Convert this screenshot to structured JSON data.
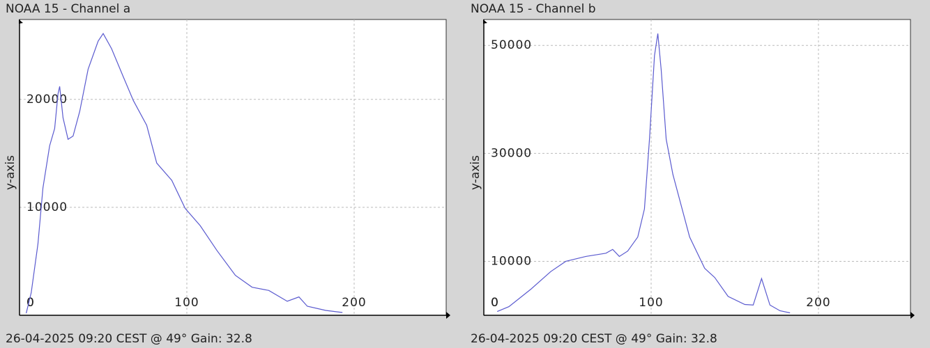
{
  "chart_data": [
    {
      "type": "line",
      "title": "NOAA 15 - Channel a",
      "y_label": "y-axis",
      "caption": "26-04-2025 09:20 CEST @ 49° Gain: 32.8",
      "x": [
        4,
        7,
        11,
        14,
        18,
        21,
        23,
        24,
        26,
        29,
        32,
        36,
        41,
        47,
        50,
        55,
        62,
        68,
        76,
        82,
        91,
        99,
        108,
        118,
        129,
        139,
        149,
        160,
        167,
        172,
        183,
        193
      ],
      "series": [
        {
          "name": "Channel a",
          "color": "#5a5acf",
          "values": [
            190,
            2100,
            6600,
            11800,
            15700,
            17300,
            20500,
            21200,
            18300,
            16300,
            16600,
            18900,
            22800,
            25400,
            26100,
            24700,
            22100,
            19900,
            17600,
            14100,
            12500,
            9900,
            8300,
            6000,
            3700,
            2600,
            2300,
            1300,
            1700,
            840,
            450,
            260
          ]
        }
      ],
      "xlim": [
        0,
        255
      ],
      "xticks": [
        0,
        100,
        200
      ],
      "ylim": [
        0,
        27400
      ],
      "yticks": [
        0,
        10000,
        20000
      ],
      "grid": true
    },
    {
      "type": "line",
      "title": "NOAA 15 - Channel b",
      "y_label": "y-axis",
      "caption": "26-04-2025 09:20 CEST @ 49° Gain: 32.8",
      "x": [
        8,
        15,
        28,
        40,
        49,
        61,
        73,
        77,
        81,
        86,
        92,
        96,
        99,
        102,
        104,
        106,
        109,
        113,
        123,
        132,
        138,
        146,
        156,
        161,
        166,
        171,
        177,
        183
      ],
      "series": [
        {
          "name": "Channel b",
          "color": "#5a5acf",
          "values": [
            700,
            1600,
            4800,
            8100,
            10000,
            10900,
            11500,
            12200,
            10900,
            11900,
            14500,
            19700,
            32600,
            48100,
            52200,
            45500,
            32600,
            26100,
            14500,
            8700,
            7000,
            3500,
            2000,
            1900,
            6800,
            1900,
            840,
            450
          ]
        }
      ],
      "xlim": [
        0,
        255
      ],
      "xticks": [
        0,
        100,
        200
      ],
      "ylim": [
        0,
        54800
      ],
      "yticks": [
        0,
        10000,
        30000,
        50000
      ],
      "grid": true
    }
  ]
}
